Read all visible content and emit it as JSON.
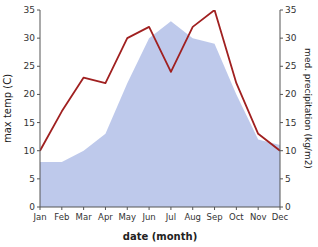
{
  "chart_data": {
    "type": "line",
    "categories": [
      "Jan",
      "Feb",
      "Mar",
      "Apr",
      "May",
      "Jun",
      "Jul",
      "Aug",
      "Sep",
      "Oct",
      "Nov",
      "Dec"
    ],
    "series": [
      {
        "type": "area",
        "axis": "y2",
        "color": "#b3c0e8",
        "values": [
          8,
          8,
          10,
          13,
          22,
          30,
          33,
          30,
          29,
          20,
          12,
          11
        ]
      },
      {
        "type": "line",
        "color": "#a02020",
        "values": [
          10,
          17,
          23,
          22,
          30,
          32,
          24,
          32,
          35,
          22,
          13,
          10
        ]
      }
    ],
    "xlabel": "date (month)",
    "ylabel": "max temp (C)",
    "y2label": "med. precipitation (kg/m2)",
    "ylim": [
      0,
      35
    ],
    "yticks": [
      0,
      5,
      10,
      15,
      20,
      25,
      30,
      35
    ],
    "y2lim": [
      0,
      35
    ],
    "y2ticks": [
      0,
      5,
      10,
      15,
      20,
      25,
      30,
      35
    ],
    "grid": false
  }
}
